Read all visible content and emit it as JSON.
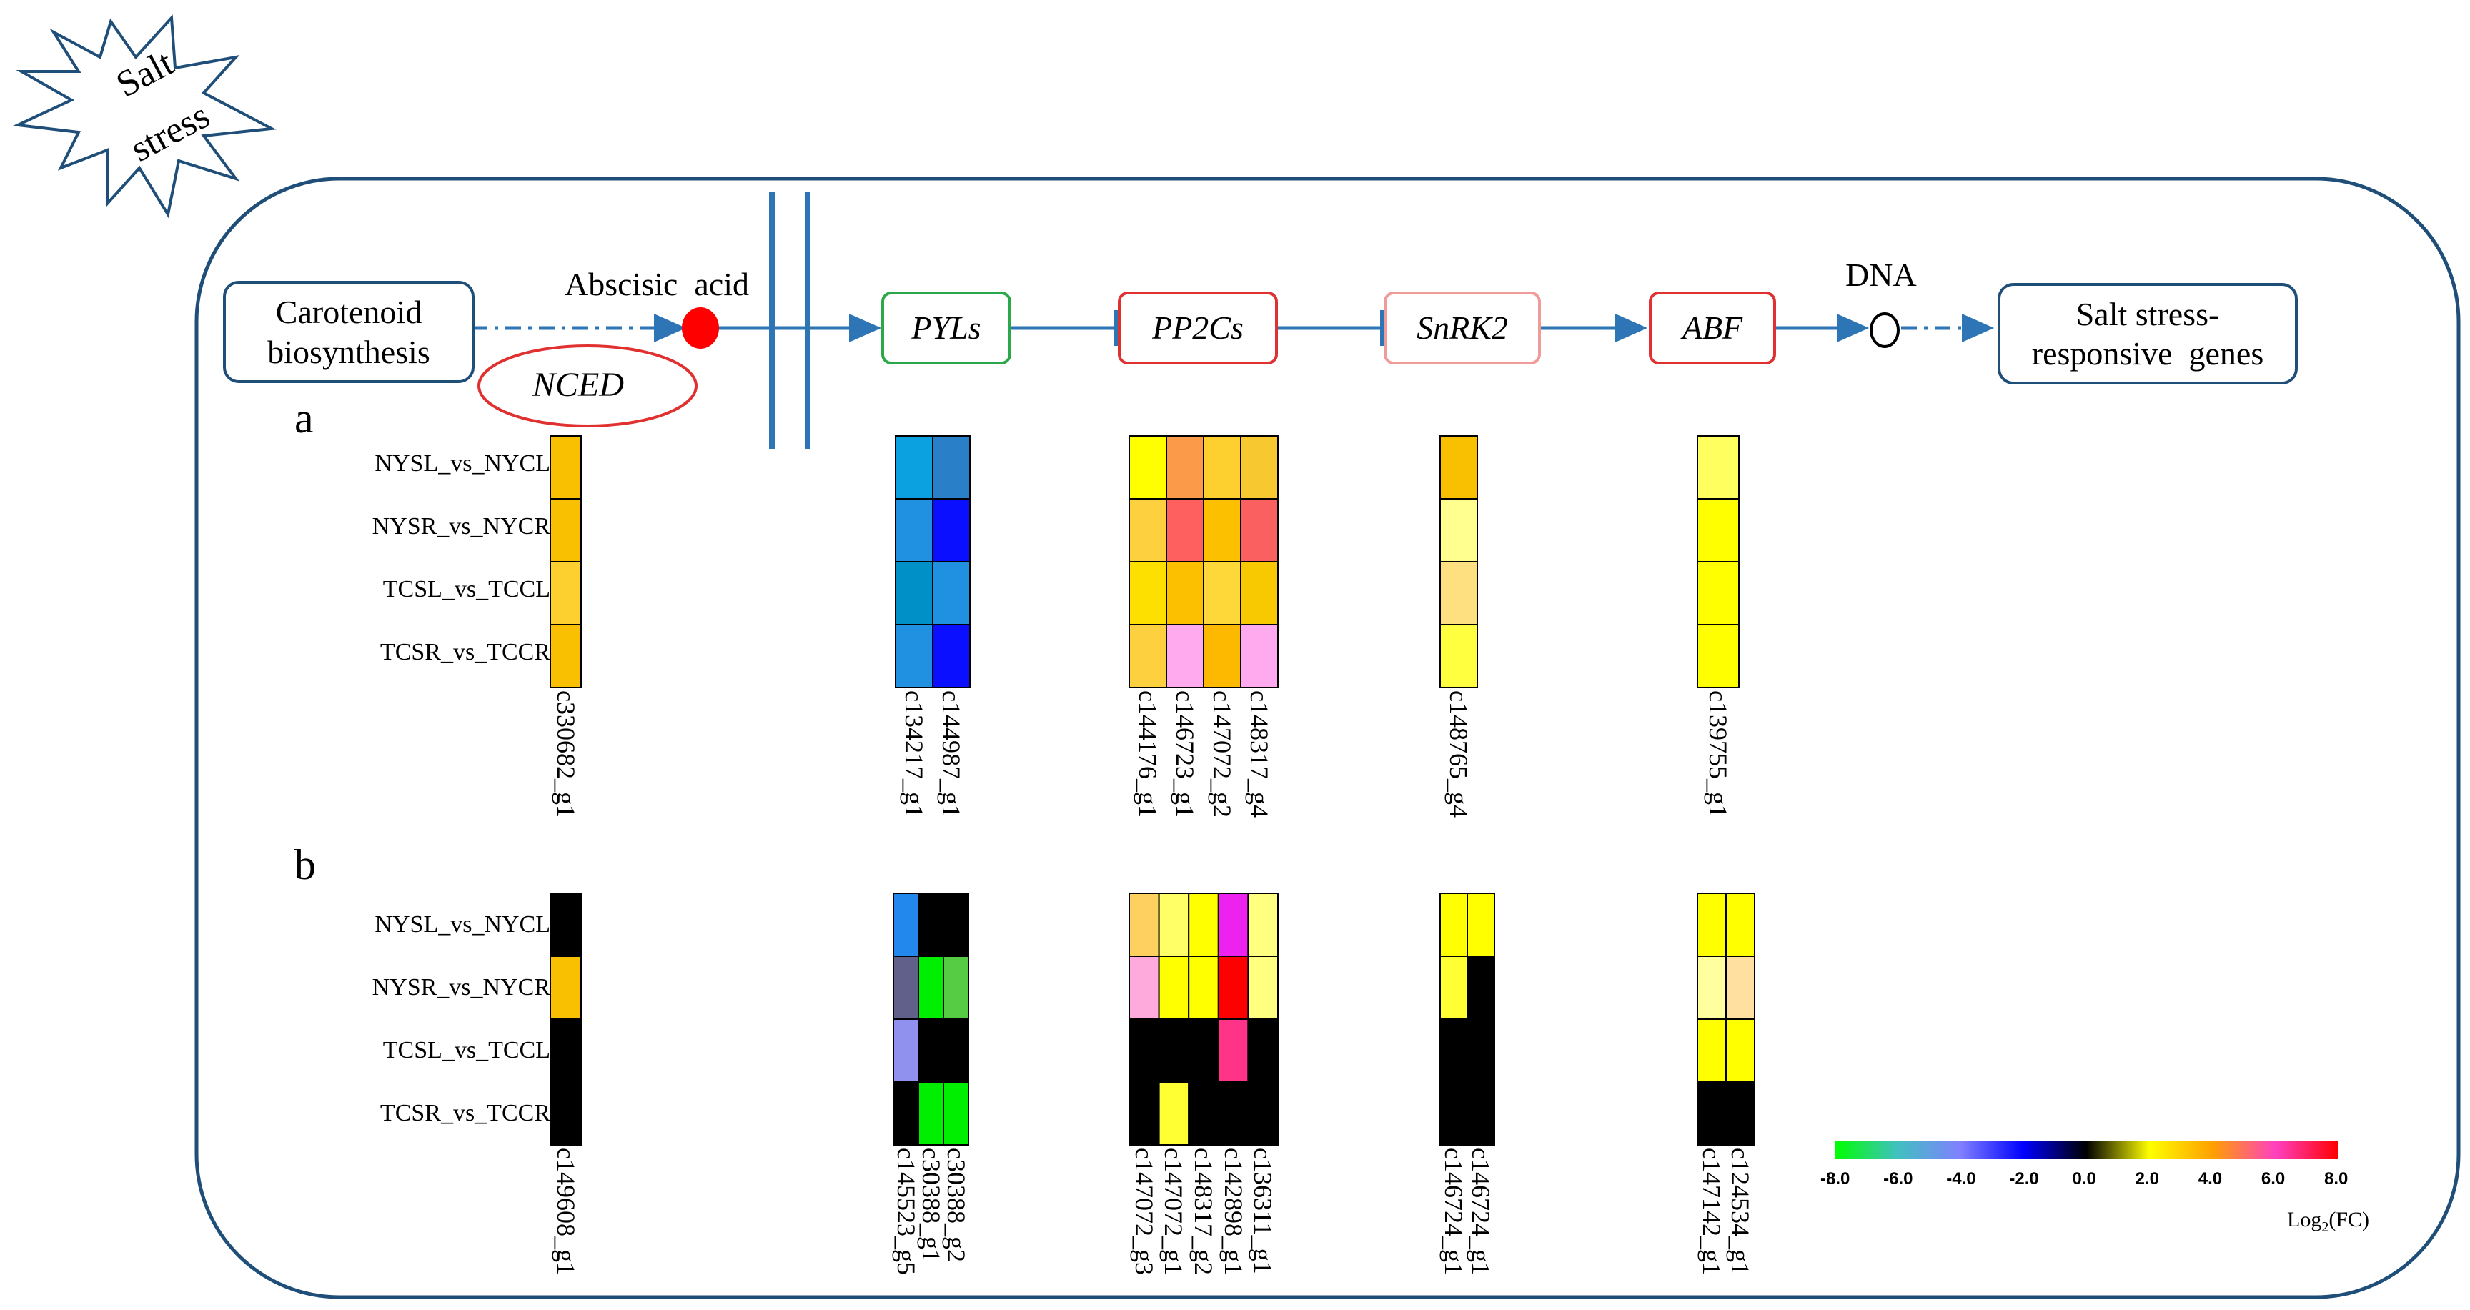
{
  "burst": {
    "line1": "Salt",
    "line2": "stress"
  },
  "pathway": {
    "carotenoid": {
      "line1": "Carotenoid",
      "line2": "biosynthesis"
    },
    "nced": "NCED",
    "aba": "Abscisic  acid",
    "pyls": "PYLs",
    "pp2cs": "PP2Cs",
    "snrk2": "SnRK2",
    "abf": "ABF",
    "dna": "DNA",
    "responsive": {
      "line1": "Salt stress-",
      "line2": "responsive  genes"
    }
  },
  "colors": {
    "outline_blue": "#1f4e79",
    "arrow_blue": "#2e75b6",
    "pyls_border": "#2ca84a",
    "red_border": "#e03030",
    "snrk_border": "#f19a9a",
    "aba_dot": "#ff0000"
  },
  "rows": [
    "NYSL_vs_NYCL",
    "NYSR_vs_NYCR",
    "TCSL_vs_TCCL",
    "TCSR_vs_TCCR"
  ],
  "panel_a": {
    "letter": "a",
    "groups": [
      {
        "gene_labels": [
          "c330682_g1"
        ],
        "cells": [
          [
            "#f8c000"
          ],
          [
            "#f8c000"
          ],
          [
            "#fdd030"
          ],
          [
            "#f8c000"
          ]
        ]
      },
      {
        "gene_labels": [
          "c134217_g1",
          "c144987_g1"
        ],
        "cells": [
          [
            "#0ba0e0",
            "#2a80c8"
          ],
          [
            "#2090e0",
            "#0a10ff"
          ],
          [
            "#0090c8",
            "#2090e0"
          ],
          [
            "#2090e0",
            "#0a10ff"
          ]
        ]
      },
      {
        "gene_labels": [
          "c144176_g1",
          "c146723_g1",
          "c147072_g2",
          "c148317_g4"
        ],
        "cells": [
          [
            "#ffff00",
            "#fb9a48",
            "#fdd030",
            "#f8c830"
          ],
          [
            "#fdd040",
            "#fe6060",
            "#fdc000",
            "#fb6060"
          ],
          [
            "#fde000",
            "#fdc000",
            "#fdd838",
            "#f8c800"
          ],
          [
            "#fdd040",
            "#ffaaee",
            "#fdb800",
            "#ffaaee"
          ]
        ]
      },
      {
        "gene_labels": [
          "c148765_g4"
        ],
        "cells": [
          [
            "#f8c000"
          ],
          [
            "#ffff90"
          ],
          [
            "#ffe080"
          ],
          [
            "#ffff40"
          ]
        ]
      },
      {
        "gene_labels": [
          "c139755_g1"
        ],
        "cells": [
          [
            "#ffff60"
          ],
          [
            "#ffff00"
          ],
          [
            "#ffff00"
          ],
          [
            "#ffff00"
          ]
        ]
      }
    ]
  },
  "panel_b": {
    "letter": "b",
    "groups": [
      {
        "gene_labels": [
          "c149608_g1"
        ],
        "cells": [
          [
            "#000000"
          ],
          [
            "#f8c000"
          ],
          [
            "#000000"
          ],
          [
            "#000000"
          ]
        ]
      },
      {
        "gene_labels": [
          "c145523_g5",
          "c30388_g1",
          "c30388_g2"
        ],
        "cells": [
          [
            "#2288ee",
            "#000000",
            "#000000"
          ],
          [
            "#60608a",
            "#00ee00",
            "#55cc44"
          ],
          [
            "#9090ee",
            "#000000",
            "#000000"
          ],
          [
            "#000000",
            "#00ee00",
            "#00ee00"
          ]
        ]
      },
      {
        "gene_labels": [
          "c147072_g3",
          "c147072_g1",
          "c148317_g2",
          "c142898_g1",
          "c136311_g1"
        ],
        "cells": [
          [
            "#fdd060",
            "#ffff66",
            "#ffff00",
            "#ee22ee",
            "#ffff80"
          ],
          [
            "#ffaadd",
            "#ffff00",
            "#ffff00",
            "#ff0000",
            "#ffff80"
          ],
          [
            "#000000",
            "#000000",
            "#000000",
            "#ff3388",
            "#000000"
          ],
          [
            "#000000",
            "#ffff33",
            "#000000",
            "#000000",
            "#000000"
          ]
        ]
      },
      {
        "gene_labels": [
          "c146724_g1",
          "c146724_g1"
        ],
        "cells": [
          [
            "#ffff00",
            "#ffff00"
          ],
          [
            "#ffff33",
            "#000000"
          ],
          [
            "#000000",
            "#000000"
          ],
          [
            "#000000",
            "#000000"
          ]
        ]
      },
      {
        "gene_labels": [
          "c147142_g1",
          "c124534_g1"
        ],
        "cells": [
          [
            "#ffff00",
            "#ffff00"
          ],
          [
            "#ffffa0",
            "#ffe0a0"
          ],
          [
            "#ffff00",
            "#ffff00"
          ],
          [
            "#000000",
            "#000000"
          ]
        ]
      }
    ]
  },
  "legend": {
    "ticks": [
      "-8.0",
      "-6.0",
      "-4.0",
      "-2.0",
      "0.0",
      "2.0",
      "4.0",
      "6.0",
      "8.0"
    ],
    "title_main": "Log",
    "title_sub": "2",
    "title_tail": "(FC)",
    "stops": [
      "#00ff00",
      "#40c0c0",
      "#8080ff",
      "#0000ff",
      "#000000",
      "#ffff00",
      "#ffa000",
      "#ff40c0",
      "#ff0000"
    ]
  }
}
